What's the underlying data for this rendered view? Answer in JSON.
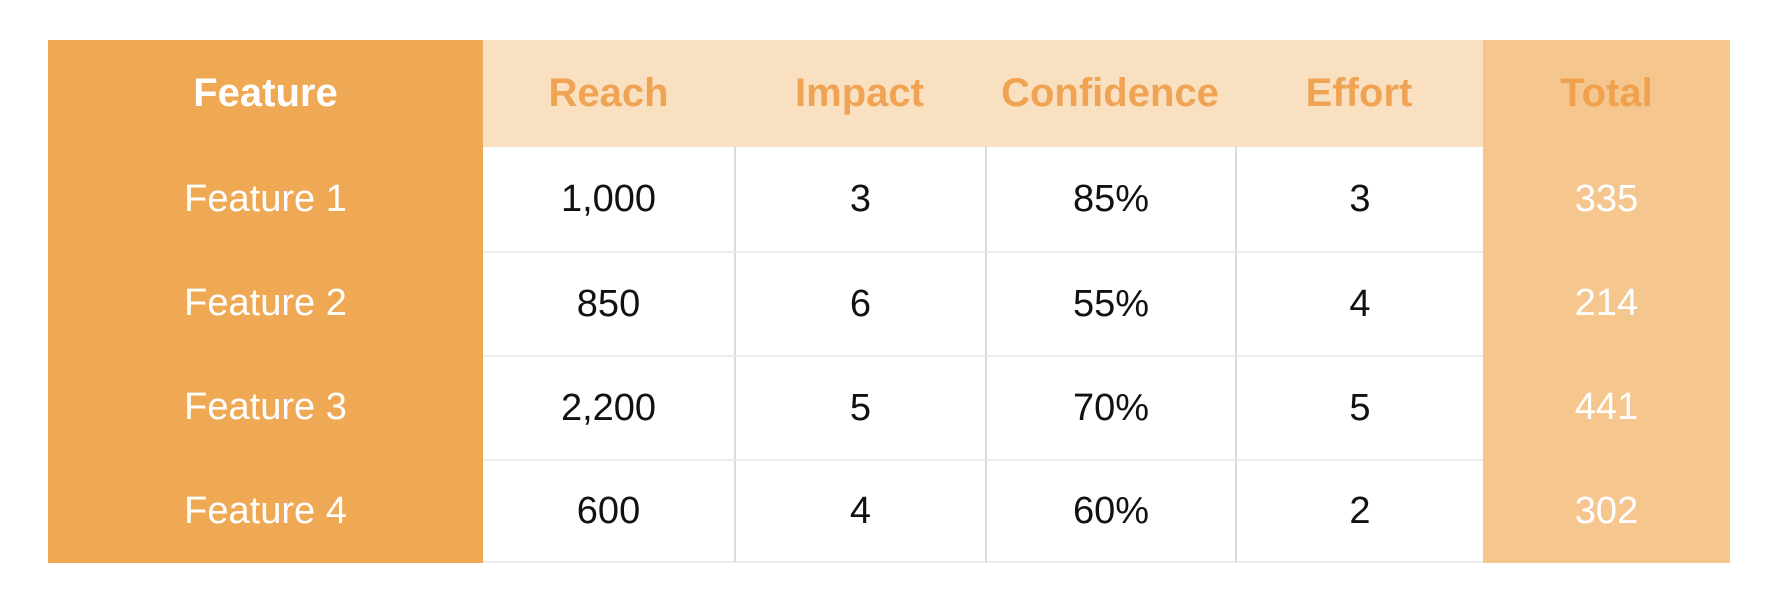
{
  "table": {
    "headers": [
      "Feature",
      "Reach",
      "Impact",
      "Confidence",
      "Effort",
      "Total"
    ],
    "rows": [
      {
        "feature": "Feature 1",
        "reach": "1,000",
        "impact": "3",
        "confidence": "85%",
        "effort": "3",
        "total": "335"
      },
      {
        "feature": "Feature 2",
        "reach": "850",
        "impact": "6",
        "confidence": "55%",
        "effort": "4",
        "total": "214"
      },
      {
        "feature": "Feature 3",
        "reach": "2,200",
        "impact": "5",
        "confidence": "70%",
        "effort": "5",
        "total": "441"
      },
      {
        "feature": "Feature 4",
        "reach": "600",
        "impact": "4",
        "confidence": "60%",
        "effort": "2",
        "total": "302"
      }
    ]
  },
  "colors": {
    "feature_column_bg": "#EFA854",
    "header_band_bg": "#F8E0C0",
    "total_column_bg": "#F5C78F",
    "header_text_orange": "#F0A352",
    "feature_text": "#FFFFFF",
    "total_value_text": "#FFFFFF",
    "data_text": "#111111",
    "vertical_separator": "#DBDBDB",
    "horizontal_separator": "#EDEDED",
    "page_background": "#FFFFFF"
  },
  "chart_data": {
    "type": "table",
    "title": "",
    "columns": [
      "Feature",
      "Reach",
      "Impact",
      "Confidence",
      "Effort",
      "Total"
    ],
    "rows": [
      [
        "Feature 1",
        1000,
        3,
        "85%",
        3,
        335
      ],
      [
        "Feature 2",
        850,
        6,
        "55%",
        4,
        214
      ],
      [
        "Feature 3",
        2200,
        5,
        "70%",
        5,
        441
      ],
      [
        "Feature 4",
        600,
        4,
        "60%",
        2,
        302
      ]
    ]
  }
}
